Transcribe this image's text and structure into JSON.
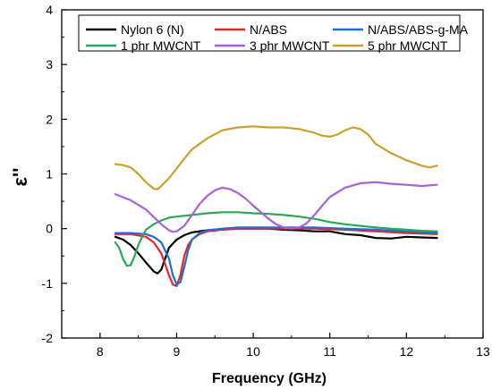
{
  "chart_data": {
    "type": "line",
    "title": "",
    "xlabel": "Frequency (GHz)",
    "ylabel": "ε''",
    "xlim": [
      7.5,
      13
    ],
    "ylim": [
      -2,
      4
    ],
    "xticks": [
      8,
      9,
      10,
      11,
      12,
      13
    ],
    "yticks": [
      -2,
      -1,
      0,
      1,
      2,
      3,
      4
    ],
    "grid": false,
    "legend_position": "top",
    "series": [
      {
        "name": "Nylon 6 (N)",
        "color": "#000000",
        "x": [
          8.2,
          8.3,
          8.4,
          8.5,
          8.6,
          8.7,
          8.75,
          8.8,
          8.85,
          8.9,
          9.0,
          9.1,
          9.2,
          9.4,
          9.6,
          9.8,
          10.0,
          10.2,
          10.4,
          10.6,
          10.8,
          11.0,
          11.2,
          11.4,
          11.6,
          11.8,
          12.0,
          12.2,
          12.4
        ],
        "y": [
          -0.15,
          -0.2,
          -0.3,
          -0.45,
          -0.62,
          -0.78,
          -0.82,
          -0.75,
          -0.55,
          -0.35,
          -0.2,
          -0.12,
          -0.07,
          -0.03,
          -0.01,
          0.0,
          0.0,
          0.0,
          -0.02,
          -0.03,
          -0.05,
          -0.05,
          -0.1,
          -0.12,
          -0.17,
          -0.18,
          -0.15,
          -0.16,
          -0.17
        ]
      },
      {
        "name": "N/ABS",
        "color": "#e8262a",
        "x": [
          8.2,
          8.4,
          8.6,
          8.7,
          8.8,
          8.85,
          8.9,
          8.95,
          9.0,
          9.05,
          9.1,
          9.15,
          9.2,
          9.3,
          9.4,
          9.6,
          9.8,
          10.0,
          10.4,
          10.8,
          11.2,
          11.6,
          12.0,
          12.4
        ],
        "y": [
          -0.1,
          -0.1,
          -0.15,
          -0.25,
          -0.45,
          -0.65,
          -0.85,
          -1.02,
          -1.05,
          -0.85,
          -0.5,
          -0.3,
          -0.2,
          -0.1,
          -0.05,
          -0.02,
          0.0,
          0.0,
          0.0,
          0.0,
          -0.02,
          -0.05,
          -0.08,
          -0.1
        ]
      },
      {
        "name": "N/ABS/ABS-g-MA",
        "color": "#1f6fd1",
        "x": [
          8.2,
          8.4,
          8.6,
          8.7,
          8.8,
          8.9,
          8.95,
          9.0,
          9.05,
          9.1,
          9.15,
          9.2,
          9.3,
          9.4,
          9.6,
          9.8,
          10.0,
          10.4,
          10.8,
          11.2,
          11.6,
          12.0,
          12.4
        ],
        "y": [
          -0.08,
          -0.08,
          -0.1,
          -0.15,
          -0.25,
          -0.55,
          -0.85,
          -1.02,
          -0.98,
          -0.7,
          -0.4,
          -0.2,
          -0.08,
          -0.03,
          0.0,
          0.02,
          0.02,
          0.02,
          0.02,
          0.0,
          -0.02,
          -0.05,
          -0.08
        ]
      },
      {
        "name": "1 phr MWCNT",
        "color": "#2ea65a",
        "x": [
          8.2,
          8.25,
          8.3,
          8.35,
          8.4,
          8.45,
          8.5,
          8.55,
          8.6,
          8.7,
          8.8,
          8.9,
          9.0,
          9.2,
          9.4,
          9.6,
          9.8,
          10.0,
          10.2,
          10.4,
          10.6,
          10.8,
          11.0,
          11.2,
          11.4,
          11.6,
          11.8,
          12.0,
          12.2,
          12.4
        ],
        "y": [
          -0.25,
          -0.35,
          -0.55,
          -0.68,
          -0.67,
          -0.5,
          -0.3,
          -0.15,
          -0.02,
          0.08,
          0.15,
          0.2,
          0.22,
          0.25,
          0.28,
          0.3,
          0.3,
          0.28,
          0.27,
          0.25,
          0.22,
          0.18,
          0.12,
          0.08,
          0.05,
          0.02,
          0.0,
          -0.02,
          -0.04,
          -0.05
        ]
      },
      {
        "name": "3 phr MWCNT",
        "color": "#a960d8",
        "x": [
          8.2,
          8.4,
          8.6,
          8.8,
          8.9,
          8.95,
          9.0,
          9.1,
          9.2,
          9.3,
          9.4,
          9.5,
          9.6,
          9.7,
          9.8,
          9.9,
          10.0,
          10.1,
          10.2,
          10.3,
          10.4,
          10.5,
          10.6,
          10.7,
          10.8,
          10.9,
          11.0,
          11.2,
          11.4,
          11.6,
          11.8,
          12.0,
          12.2,
          12.4
        ],
        "y": [
          0.63,
          0.52,
          0.35,
          0.08,
          -0.03,
          -0.06,
          -0.05,
          0.05,
          0.25,
          0.45,
          0.6,
          0.7,
          0.75,
          0.72,
          0.65,
          0.55,
          0.42,
          0.3,
          0.18,
          0.08,
          0.02,
          0.0,
          0.02,
          0.1,
          0.25,
          0.42,
          0.58,
          0.75,
          0.83,
          0.85,
          0.82,
          0.8,
          0.78,
          0.8
        ]
      },
      {
        "name": "5 phr MWCNT",
        "color": "#c9a227",
        "x": [
          8.2,
          8.3,
          8.4,
          8.5,
          8.6,
          8.7,
          8.75,
          8.8,
          8.9,
          9.0,
          9.1,
          9.2,
          9.4,
          9.6,
          9.8,
          10.0,
          10.2,
          10.4,
          10.6,
          10.8,
          10.9,
          11.0,
          11.1,
          11.2,
          11.3,
          11.4,
          11.5,
          11.6,
          11.8,
          12.0,
          12.2,
          12.3,
          12.4
        ],
        "y": [
          1.18,
          1.16,
          1.12,
          1.0,
          0.85,
          0.73,
          0.72,
          0.78,
          0.92,
          1.1,
          1.28,
          1.45,
          1.65,
          1.8,
          1.85,
          1.87,
          1.85,
          1.85,
          1.82,
          1.75,
          1.7,
          1.68,
          1.72,
          1.8,
          1.85,
          1.82,
          1.72,
          1.55,
          1.38,
          1.25,
          1.15,
          1.12,
          1.15
        ]
      }
    ]
  }
}
